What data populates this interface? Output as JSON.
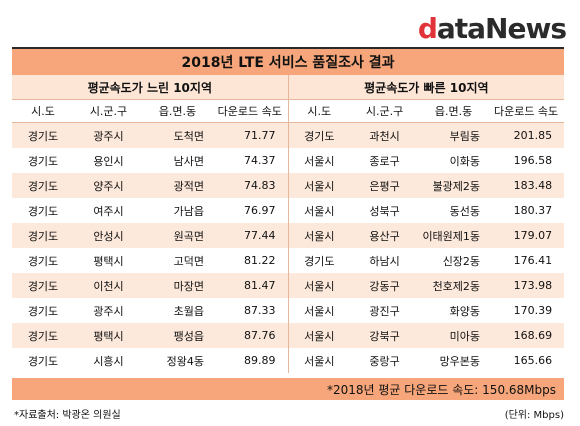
{
  "logo": {
    "d": "d",
    "rest": "ataNews"
  },
  "title": "2018년 LTE 서비스 품질조사 결과",
  "sections": {
    "slow": "평균속도가 느린 10지역",
    "fast": "평균속도가 빠른 10지역"
  },
  "headers": [
    "시.도",
    "시.군.구",
    "읍.면.동",
    "다운로드 속도",
    "시.도",
    "시.군.구",
    "읍.면.동",
    "다운로드 속도"
  ],
  "rows": [
    {
      "l": [
        "경기도",
        "광주시",
        "도척면",
        "71.77"
      ],
      "r": [
        "경기도",
        "과천시",
        "부림동",
        "201.85"
      ]
    },
    {
      "l": [
        "경기도",
        "용인시",
        "남사면",
        "74.37"
      ],
      "r": [
        "서울시",
        "종로구",
        "이화동",
        "196.58"
      ]
    },
    {
      "l": [
        "경기도",
        "양주시",
        "광적면",
        "74.83"
      ],
      "r": [
        "서울시",
        "은평구",
        "불광제2동",
        "183.48"
      ]
    },
    {
      "l": [
        "경기도",
        "여주시",
        "가남읍",
        "76.97"
      ],
      "r": [
        "서울시",
        "성북구",
        "동선동",
        "180.37"
      ]
    },
    {
      "l": [
        "경기도",
        "안성시",
        "원곡면",
        "77.44"
      ],
      "r": [
        "서울시",
        "용산구",
        "이태원제1동",
        "179.07"
      ]
    },
    {
      "l": [
        "경기도",
        "평택시",
        "고덕면",
        "81.22"
      ],
      "r": [
        "경기도",
        "하남시",
        "신장2동",
        "176.41"
      ]
    },
    {
      "l": [
        "경기도",
        "이천시",
        "마장면",
        "81.47"
      ],
      "r": [
        "서울시",
        "강동구",
        "천호제2동",
        "173.98"
      ]
    },
    {
      "l": [
        "경기도",
        "광주시",
        "초월읍",
        "87.33"
      ],
      "r": [
        "서울시",
        "광진구",
        "화양동",
        "170.39"
      ]
    },
    {
      "l": [
        "경기도",
        "평택시",
        "팽성읍",
        "87.76"
      ],
      "r": [
        "서울시",
        "강북구",
        "미아동",
        "168.69"
      ]
    },
    {
      "l": [
        "경기도",
        "시흥시",
        "정왕4동",
        "89.89"
      ],
      "r": [
        "서울시",
        "중랑구",
        "망우본동",
        "165.66"
      ]
    }
  ],
  "average": "*2018년 평균 다운로드 속도: 150.68Mbps",
  "source": "*자료출처: 박광온 의원실",
  "unit": "(단위: Mbps)"
}
